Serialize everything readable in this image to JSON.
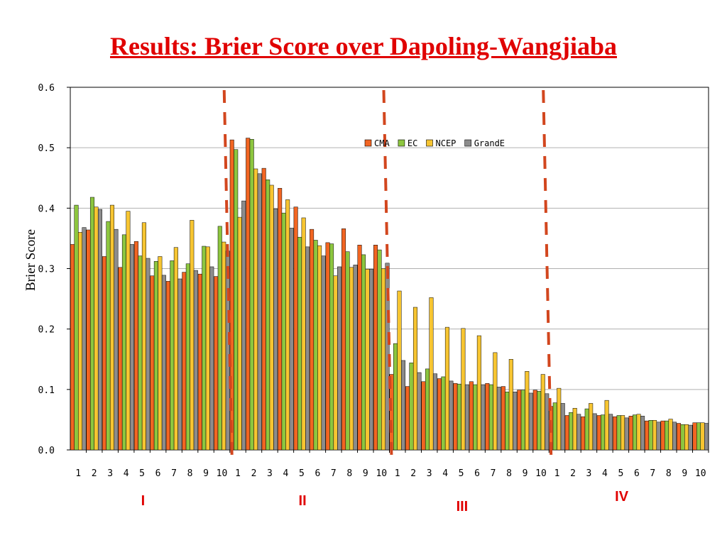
{
  "title": "Results: Brier Score over Dapoling-Wangjiaba",
  "colors": {
    "CMA": "#f26522",
    "EC": "#8dc63f",
    "NCEP": "#f7c531",
    "GrandE": "#8c8c8c",
    "divider": "#d2461e",
    "title": "#e00000"
  },
  "chart_data": {
    "type": "bar",
    "ylabel": "Brier Score",
    "xlabel": "",
    "ylim": [
      0,
      0.6
    ],
    "yticks": [
      "0.0",
      "0.1",
      "0.2",
      "0.3",
      "0.4",
      "0.5",
      "0.6"
    ],
    "grid": true,
    "legend_placement": "top-center",
    "groups": [
      "I",
      "II",
      "III",
      "IV"
    ],
    "categories": [
      "1",
      "2",
      "3",
      "4",
      "5",
      "6",
      "7",
      "8",
      "9",
      "10",
      "1",
      "2",
      "3",
      "4",
      "5",
      "6",
      "7",
      "8",
      "9",
      "10",
      "1",
      "2",
      "3",
      "4",
      "5",
      "6",
      "7",
      "8",
      "9",
      "10",
      "1",
      "2",
      "3",
      "4",
      "5",
      "6",
      "7",
      "8",
      "9",
      "10"
    ],
    "series": [
      {
        "name": "CMA",
        "values": [
          0.34,
          0.364,
          0.32,
          0.302,
          0.345,
          0.288,
          0.279,
          0.294,
          0.291,
          0.287,
          0.513,
          0.516,
          0.466,
          0.433,
          0.402,
          0.365,
          0.343,
          0.366,
          0.339,
          0.339,
          0.125,
          0.105,
          0.113,
          0.118,
          0.11,
          0.113,
          0.11,
          0.105,
          0.099,
          0.099,
          0.072,
          0.057,
          0.055,
          0.057,
          0.055,
          0.056,
          0.048,
          0.048,
          0.044,
          0.045
        ]
      },
      {
        "name": "EC",
        "values": [
          0.405,
          0.418,
          0.378,
          0.356,
          0.321,
          0.312,
          0.313,
          0.308,
          0.337,
          0.37,
          0.497,
          0.514,
          0.447,
          0.392,
          0.352,
          0.347,
          0.341,
          0.328,
          0.323,
          0.331,
          0.176,
          0.144,
          0.134,
          0.121,
          0.109,
          0.108,
          0.108,
          0.096,
          0.099,
          0.097,
          0.078,
          0.062,
          0.068,
          0.058,
          0.057,
          0.058,
          0.049,
          0.048,
          0.042,
          0.045
        ]
      },
      {
        "name": "NCEP",
        "values": [
          0.36,
          0.402,
          0.405,
          0.395,
          0.376,
          0.32,
          0.335,
          0.38,
          0.336,
          0.344,
          0.385,
          0.465,
          0.438,
          0.414,
          0.384,
          0.338,
          0.288,
          0.302,
          0.299,
          0.3,
          0.263,
          0.236,
          0.252,
          0.203,
          0.201,
          0.189,
          0.161,
          0.15,
          0.13,
          0.125,
          0.102,
          0.069,
          0.077,
          0.082,
          0.057,
          0.059,
          0.049,
          0.051,
          0.042,
          0.045
        ]
      },
      {
        "name": "GrandE",
        "values": [
          0.368,
          0.398,
          0.365,
          0.34,
          0.317,
          0.289,
          0.283,
          0.297,
          0.303,
          0.329,
          0.412,
          0.457,
          0.399,
          0.367,
          0.336,
          0.321,
          0.303,
          0.306,
          0.299,
          0.309,
          0.148,
          0.128,
          0.126,
          0.114,
          0.108,
          0.108,
          0.104,
          0.096,
          0.094,
          0.093,
          0.077,
          0.059,
          0.06,
          0.059,
          0.053,
          0.056,
          0.046,
          0.046,
          0.041,
          0.044
        ]
      }
    ]
  }
}
